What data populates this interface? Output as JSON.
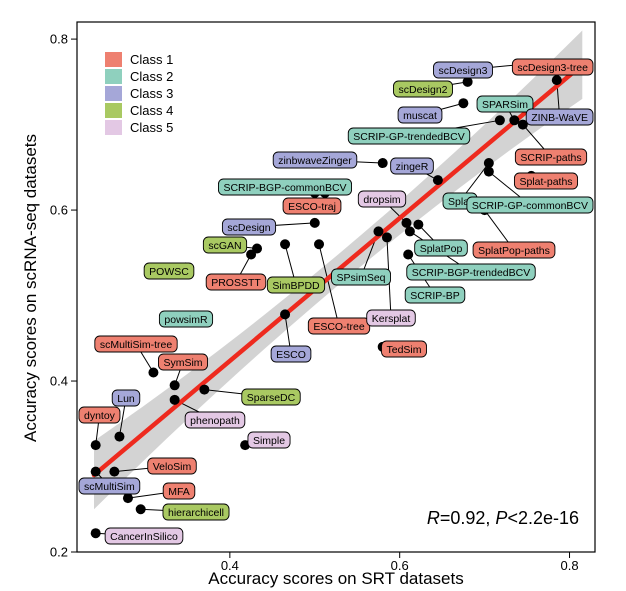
{
  "chart_data": {
    "type": "scatter",
    "title": "",
    "xlabel": "Accuracy scores on SRT datasets",
    "ylabel": "Accuracy scores on scRNA-seq datasets",
    "xlim": [
      0.22,
      0.83
    ],
    "ylim": [
      0.2,
      0.82
    ],
    "x_ticks": [
      "0.4",
      "0.6",
      "0.8"
    ],
    "y_ticks": [
      "0.2",
      "0.4",
      "0.6",
      "0.8"
    ],
    "grid": false,
    "legend_position": "top-left",
    "legend": [
      {
        "name": "Class 1",
        "color": "#ee8070"
      },
      {
        "name": "Class 2",
        "color": "#8fd0be"
      },
      {
        "name": "Class 3",
        "color": "#a5a7d8"
      },
      {
        "name": "Class 4",
        "color": "#a9c962"
      },
      {
        "name": "Class 5",
        "color": "#e3c8e4"
      }
    ],
    "annotation": {
      "r_label": "R",
      "r_value": "=0.92, ",
      "p_label": "P",
      "p_value": "<2.2e-16"
    },
    "regression": {
      "x0": 0.24,
      "y0": 0.29,
      "x1": 0.815,
      "y1": 0.77,
      "color": "#ee2a1e",
      "band": "#d3d3d3"
    },
    "points": [
      {
        "label": "scDesign3-tree",
        "x": 0.815,
        "y": 0.768,
        "class": 1
      },
      {
        "label": "scDesign3",
        "x": 0.74,
        "y": 0.77,
        "class": 3
      },
      {
        "label": "scDesign2",
        "x": 0.68,
        "y": 0.75,
        "class": 4
      },
      {
        "label": "muscat",
        "x": 0.675,
        "y": 0.725,
        "class": 3
      },
      {
        "label": "SPARSim",
        "x": 0.735,
        "y": 0.705,
        "class": 2
      },
      {
        "label": "ZINB-WaVE",
        "x": 0.785,
        "y": 0.752,
        "class": 3
      },
      {
        "label": "SCRIP-GP-trendedBCV",
        "x": 0.718,
        "y": 0.705,
        "class": 2
      },
      {
        "label": "SCRIP-paths",
        "x": 0.745,
        "y": 0.7,
        "class": 1
      },
      {
        "label": "zinbwaveZinger",
        "x": 0.58,
        "y": 0.655,
        "class": 3
      },
      {
        "label": "zingeR",
        "x": 0.645,
        "y": 0.635,
        "class": 3
      },
      {
        "label": "Splat",
        "x": 0.705,
        "y": 0.655,
        "class": 2
      },
      {
        "label": "Splat-paths",
        "x": 0.755,
        "y": 0.64,
        "class": 1
      },
      {
        "label": "SCRIP-GP-commonBCV",
        "x": 0.705,
        "y": 0.645,
        "class": 2
      },
      {
        "label": "SCRIP-BGP-commonBCV",
        "x": 0.512,
        "y": 0.62,
        "class": 2
      },
      {
        "label": "ESCO-traj",
        "x": 0.5,
        "y": 0.62,
        "class": 1
      },
      {
        "label": "dropsim",
        "x": 0.608,
        "y": 0.585,
        "class": 5
      },
      {
        "label": "scDesign",
        "x": 0.5,
        "y": 0.585,
        "class": 3
      },
      {
        "label": "scGAN",
        "x": 0.432,
        "y": 0.555,
        "class": 4
      },
      {
        "label": "SplatPop",
        "x": 0.622,
        "y": 0.583,
        "class": 2
      },
      {
        "label": "SplatPop-paths",
        "x": 0.7,
        "y": 0.6,
        "class": 1
      },
      {
        "label": "SCRIP-BGP-trendedBCV",
        "x": 0.612,
        "y": 0.575,
        "class": 2
      },
      {
        "label": "POWSC",
        "x": 0.348,
        "y": 0.533,
        "class": 4
      },
      {
        "label": "PROSSTT",
        "x": 0.425,
        "y": 0.548,
        "class": 1
      },
      {
        "label": "SimBPDD",
        "x": 0.465,
        "y": 0.56,
        "class": 4
      },
      {
        "label": "SPsimSeq",
        "x": 0.575,
        "y": 0.575,
        "class": 2
      },
      {
        "label": "SCRIP-BP",
        "x": 0.61,
        "y": 0.548,
        "class": 2
      },
      {
        "label": "powsimR",
        "x": 0.368,
        "y": 0.475,
        "class": 2
      },
      {
        "label": "ESCO-tree",
        "x": 0.505,
        "y": 0.56,
        "class": 1
      },
      {
        "label": "Kersplat",
        "x": 0.585,
        "y": 0.568,
        "class": 5
      },
      {
        "label": "ESCO",
        "x": 0.465,
        "y": 0.478,
        "class": 3
      },
      {
        "label": "TedSim",
        "x": 0.58,
        "y": 0.44,
        "class": 1
      },
      {
        "label": "scMultiSim-tree",
        "x": 0.31,
        "y": 0.41,
        "class": 1
      },
      {
        "label": "SymSim",
        "x": 0.335,
        "y": 0.395,
        "class": 1
      },
      {
        "label": "SparseDC",
        "x": 0.37,
        "y": 0.39,
        "class": 4
      },
      {
        "label": "Lun",
        "x": 0.27,
        "y": 0.335,
        "class": 3
      },
      {
        "label": "phenopath",
        "x": 0.335,
        "y": 0.378,
        "class": 5
      },
      {
        "label": "dyntoy",
        "x": 0.242,
        "y": 0.325,
        "class": 1
      },
      {
        "label": "Simple",
        "x": 0.418,
        "y": 0.325,
        "class": 5
      },
      {
        "label": "VeloSim",
        "x": 0.264,
        "y": 0.294,
        "class": 1
      },
      {
        "label": "scMultiSim",
        "x": 0.242,
        "y": 0.294,
        "class": 3
      },
      {
        "label": "MFA",
        "x": 0.28,
        "y": 0.263,
        "class": 1
      },
      {
        "label": "hierarchicell",
        "x": 0.295,
        "y": 0.25,
        "class": 4
      },
      {
        "label": "CancerInSilico",
        "x": 0.242,
        "y": 0.222,
        "class": 5
      }
    ]
  }
}
